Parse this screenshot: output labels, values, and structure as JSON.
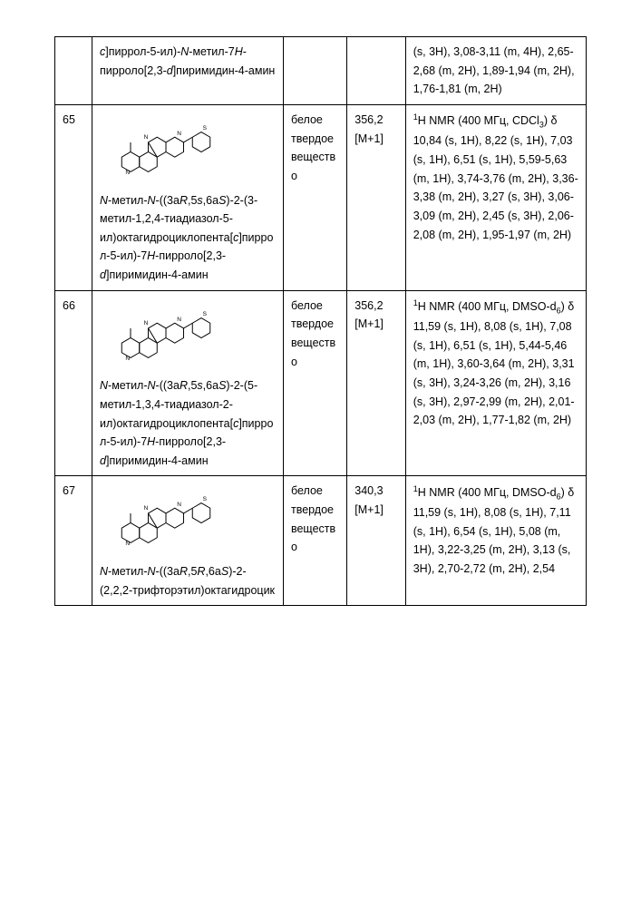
{
  "rows": [
    {
      "num": "",
      "name_parts": [
        {
          "t": "с",
          "i": true
        },
        {
          "t": "]пиррол-5-ил)-"
        },
        {
          "t": "N",
          "i": true
        },
        {
          "t": "-метил-7"
        },
        {
          "t": "H",
          "i": true
        },
        {
          "t": "-пирроло[2,3-"
        },
        {
          "t": "d",
          "i": true
        },
        {
          "t": "]пиримидин-4-амин"
        }
      ],
      "appearance": "",
      "mass": "",
      "nmr": "(s, 3H), 3,08-3,11 (m, 4H), 2,65-2,68 (m, 2H), 1,89-1,94 (m, 2H), 1,76-1,81 (m, 2H)"
    },
    {
      "num": "65",
      "name_parts": [
        {
          "t": "N",
          "i": true
        },
        {
          "t": "-метил-"
        },
        {
          "t": "N",
          "i": true
        },
        {
          "t": "-((3a"
        },
        {
          "t": "R",
          "i": true
        },
        {
          "t": ",5"
        },
        {
          "t": "s",
          "i": true
        },
        {
          "t": ",6a"
        },
        {
          "t": "S",
          "i": true
        },
        {
          "t": ")-2-(3-метил-1,2,4-тиадиазол-5-ил)октагидроциклопента["
        },
        {
          "t": "с",
          "i": true
        },
        {
          "t": "]пиррол-5-ил)-7"
        },
        {
          "t": "H",
          "i": true
        },
        {
          "t": "-пирроло[2,3-"
        },
        {
          "t": "d",
          "i": true
        },
        {
          "t": "]пиримидин-4-амин"
        }
      ],
      "appearance": "белое твердое вещество",
      "mass": "356,2 [M+1]",
      "nmr_prefix": "¹H NMR (400 МГц, CDCl₃) δ ",
      "nmr": "10,84 (s, 1H), 8,22 (s, 1H), 7,03 (s, 1H), 6,51 (s, 1H), 5,59-5,63 (m, 1H), 3,74-3,76 (m, 2H), 3,36-3,38 (m, 2H), 3,27 (s, 3H), 3,06-3,09 (m, 2H), 2,45 (s, 3H), 2,06-2,08 (m, 2H), 1,95-1,97 (m, 2H)",
      "has_struct": true
    },
    {
      "num": "66",
      "name_parts": [
        {
          "t": "N",
          "i": true
        },
        {
          "t": "-метил-"
        },
        {
          "t": "N",
          "i": true
        },
        {
          "t": "-((3a"
        },
        {
          "t": "R",
          "i": true
        },
        {
          "t": ",5"
        },
        {
          "t": "s",
          "i": true
        },
        {
          "t": ",6a"
        },
        {
          "t": "S",
          "i": true
        },
        {
          "t": ")-2-(5-метил-1,3,4-тиадиазол-2-ил)октагидроциклопента["
        },
        {
          "t": "с",
          "i": true
        },
        {
          "t": "]пиррол-5-ил)-7"
        },
        {
          "t": "H",
          "i": true
        },
        {
          "t": "-пирроло[2,3-"
        },
        {
          "t": "d",
          "i": true
        },
        {
          "t": "]пиримидин-4-амин"
        }
      ],
      "appearance": "белое твердое вещество",
      "mass": "356,2 [M+1]",
      "nmr_prefix": "¹H NMR (400 МГц, DMSO-d₆) δ ",
      "nmr": "11,59 (s, 1H), 8,08 (s, 1H), 7,08 (s, 1H), 6,51 (s, 1H), 5,44-5,46 (m, 1H), 3,60-3,64 (m, 2H), 3,31 (s, 3H), 3,24-3,26 (m, 2H), 3,16 (s, 3H), 2,97-2,99 (m, 2H), 2,01-2,03 (m, 2H), 1,77-1,82 (m, 2H)",
      "has_struct": true
    },
    {
      "num": "67",
      "name_parts": [
        {
          "t": "N",
          "i": true
        },
        {
          "t": "-метил-"
        },
        {
          "t": "N",
          "i": true
        },
        {
          "t": "-((3a"
        },
        {
          "t": "R",
          "i": true
        },
        {
          "t": ",5"
        },
        {
          "t": "R",
          "i": true
        },
        {
          "t": ",6a"
        },
        {
          "t": "S",
          "i": true
        },
        {
          "t": ")-2-(2,2,2-трифторэтил)октагидроцик"
        }
      ],
      "appearance": "белое твердое вещество",
      "mass": "340,3 [M+1]",
      "nmr_prefix": "¹H NMR (400 МГц, DMSO-d₆) δ ",
      "nmr": "11,59 (s, 1H), 8,08 (s, 1H), 7,11 (s, 1H), 6,54 (s, 1H), 5,08 (m, 1H), 3,22-3,25 (m, 2H), 3,13 (s, 3H), 2,70-2,72 (m, 2H), 2,54",
      "has_struct": true
    }
  ]
}
